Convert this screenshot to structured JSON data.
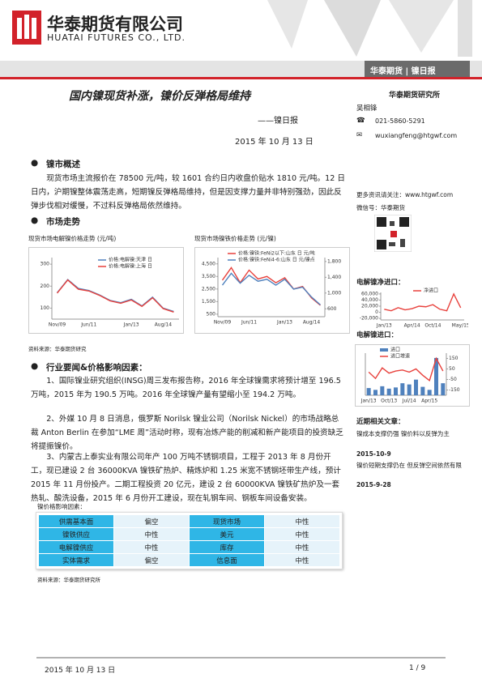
{
  "header": {
    "company": "华泰期货有限公司",
    "company_en": "HUATAI FUTURES CO., LTD.",
    "report_tag": "华泰期货 | 镍日报"
  },
  "title": "国内镍现货补涨，镍价反弹格局维持",
  "subtitle": "——镍日报",
  "date": "2015 年 10 月 13 日",
  "sidebar": {
    "institute": "华泰期货研究所",
    "analyst": "吴相锋",
    "phone": "021-5860-5291",
    "email": "wuxiangfeng@htgwf.com",
    "follow": "更多资讯请关注：www.htgwf.com",
    "wechat": "微信号：华泰期货",
    "net_import_title": "电解镍净进口：",
    "import_title": "电解镍进口：",
    "articles_title": "近期相关文章：",
    "articles": [
      {
        "title": "镍成本支撑仍强 镍价料以反弹为主",
        "date": "2015-10-9"
      },
      {
        "title": "镍价短期支撑仍在 但反弹空间依然有限",
        "date": "2015-9-28"
      }
    ]
  },
  "section1": {
    "heading": "镍市概述",
    "body": "现货市场主流报价在 78500 元/吨，较 1601 合约日内收盘价贴水 1810 元/吨。12 日日内，沪期镍整体震荡走高，短期镍反弹格局维持，但是因支撑力量并非特别强劲，因此反弹步伐相对缓慢，不过料反弹格局依然维持。"
  },
  "section2": {
    "heading": "市场走势",
    "chart1_title": "现货市场电解镍价格走势 (元/吨)",
    "chart2_title": "现货市场镍铁价格走势 (元/镍)",
    "source": "资料来源：华泰期货研究"
  },
  "section3": {
    "heading": "行业要闻&价格影响因素：",
    "paragraphs": [
      "1、国际镍业研究组织(INSG)周三发布报告称，2016 年全球镍需求将预计增至 196.5 万吨，2015 年为 190.5 万吨。2016 年全球镍产量有望缩小至 194.2 万吨。",
      "2、外媒 10 月 8 日消息，俄罗斯 Norilsk 镍业公司（Norilsk Nickel）的市场战略总裁 Anton Berlin 在参加“LME 周”活动时称，现有冶炼产能的削减和新产能项目的投资缺乏将提振镍价。",
      "3、内蒙古上泰实业有限公司年产 100 万吨不锈钢项目，工程于 2013 年 8 月份开工，现已建设 2 台 36000KVA 镍铁矿热炉、精炼炉和 1.25 米宽不锈钢坯带生产线，预计 2015 年 11 月份投产。二期工程投资 20 亿元，建设 2 台 60000KVA 镍铁矿热炉及一套热轧、酸洗设备，2015 年 6 月份开工建设，现在轧钢车间、钢板车间设备安装。"
    ]
  },
  "table": {
    "caption": "镍价格影响因素：",
    "rows": [
      [
        "供需基本面",
        "偏空",
        "现货市场",
        "中性"
      ],
      [
        "镍铁供应",
        "中性",
        "美元",
        "中性"
      ],
      [
        "电解镍供应",
        "中性",
        "库存",
        "中性"
      ],
      [
        "实体需求",
        "偏空",
        "信息面",
        "中性"
      ]
    ],
    "source": "资料来源：华泰期货研究所"
  },
  "footer": {
    "date": "2015 年 10 月 13 日",
    "page": "1 / 9"
  },
  "chart_data": [
    {
      "type": "line",
      "categories": [
        "Nov/09",
        null,
        null,
        "Jun/11",
        null,
        null,
        null,
        "Jan/13",
        null,
        null,
        "Aug/14",
        null
      ],
      "ylim": [
        50,
        330
      ],
      "yticks": [
        100,
        200,
        300
      ],
      "series": [
        {
          "name": "价格:电解镍:天津 日",
          "color": "#4f81bd",
          "values": [
            170,
            230,
            190,
            180,
            160,
            135,
            125,
            140,
            110,
            150,
            100,
            85
          ]
        },
        {
          "name": "价格:电解镍:上海 日",
          "color": "#e8413c",
          "values": [
            168,
            228,
            186,
            178,
            158,
            133,
            122,
            137,
            108,
            147,
            98,
            82
          ]
        }
      ]
    },
    {
      "type": "line",
      "categories": [
        "Nov/09",
        null,
        null,
        "Jun/11",
        null,
        null,
        null,
        "Jan/13",
        null,
        null,
        "Aug/14",
        null
      ],
      "ylim": [
        300,
        5000
      ],
      "yticks": [
        500,
        {
          "value": 1500,
          "label": "1,500"
        },
        {
          "value": 2500,
          "label": "2,500"
        },
        {
          "value": 3500,
          "label": "3,500"
        },
        {
          "value": 4500,
          "label": "4,500"
        }
      ],
      "y2lim": [
        400,
        1900
      ],
      "y2ticks": [
        600,
        {
          "value": 1000,
          "label": "1,000"
        },
        {
          "value": 1400,
          "label": "1,400"
        },
        {
          "value": 1800,
          "label": "1,800"
        }
      ],
      "series": [
        {
          "name": "价格:镍铁:FeNi2以下:山东 日 元/吨",
          "color": "#e8413c",
          "values": [
            3200,
            4200,
            3000,
            4000,
            3300,
            3500,
            3000,
            3400,
            2500,
            2700,
            1800,
            1200
          ]
        },
        {
          "name": "价格:镍铁:FeNi4-6:山东 日 元/镍点",
          "color": "#4f81bd",
          "axis": "y2",
          "values": [
            1200,
            1500,
            1250,
            1450,
            1300,
            1350,
            1200,
            1350,
            1100,
            1150,
            900,
            700
          ]
        }
      ]
    },
    {
      "type": "line",
      "categories": [
        "Jan/13",
        null,
        null,
        null,
        "Apr/14",
        null,
        null,
        "Oct/14",
        null,
        null,
        null,
        "May/15"
      ],
      "ylim": [
        -25000,
        65000
      ],
      "yticks": [
        {
          "value": -20000,
          "label": "-20,000"
        },
        0,
        {
          "value": 20000,
          "label": "20,000"
        },
        {
          "value": 40000,
          "label": "40,000"
        },
        {
          "value": 60000,
          "label": "60,000"
        }
      ],
      "series": [
        {
          "name": "净进口",
          "color": "#e8413c",
          "values": [
            10000,
            5000,
            15000,
            8000,
            12000,
            20000,
            18000,
            25000,
            10000,
            5000,
            60000,
            15000
          ]
        }
      ]
    },
    {
      "type": "bar",
      "categories": [
        "Jan/13",
        null,
        null,
        "Oct/13",
        null,
        null,
        "Jul/14",
        null,
        null,
        "Apr/15",
        null,
        null
      ],
      "ylim": [
        0,
        70000
      ],
      "y2lim": [
        -200,
        200
      ],
      "y2ticks": [
        150,
        50,
        -50,
        -150
      ],
      "series": [
        {
          "name": "进口",
          "color": "#4f81bd",
          "values": [
            12000,
            9000,
            15000,
            11000,
            13000,
            20000,
            18000,
            26000,
            14000,
            9000,
            62000,
            20000
          ]
        },
        {
          "name": "进口增速",
          "color": "#e8413c",
          "type": "line",
          "axis": "y2",
          "values": [
            20,
            -40,
            60,
            10,
            30,
            40,
            20,
            50,
            -10,
            -60,
            150,
            30
          ]
        }
      ]
    }
  ]
}
